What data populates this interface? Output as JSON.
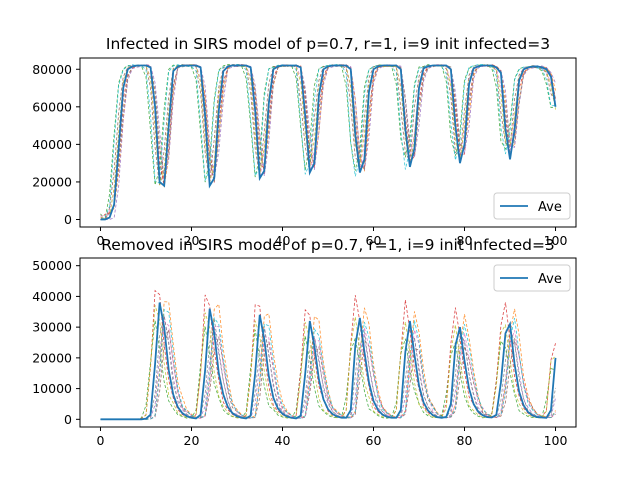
{
  "chart_data": [
    {
      "type": "line",
      "title": "Infected in SIRS model of p=0.7, r=1, i=9 init infected=3",
      "xlabel": "",
      "ylabel": "",
      "xlim": [
        -4.5,
        104.5
      ],
      "ylim": [
        -4000,
        86000
      ],
      "xticks": [
        0,
        20,
        40,
        60,
        80,
        100
      ],
      "yticks": [
        0,
        20000,
        40000,
        60000,
        80000
      ],
      "grid": false,
      "legend": {
        "position": "lower-right",
        "entries": [
          "Ave"
        ]
      },
      "average_series": {
        "name": "Ave",
        "color": "#1f77b4",
        "x": [
          0,
          1,
          2,
          3,
          4,
          5,
          6,
          7,
          8,
          9,
          10,
          11,
          12,
          13,
          14,
          15,
          16,
          17,
          18,
          19,
          20,
          21,
          22,
          23,
          24,
          25,
          26,
          27,
          28,
          29,
          30,
          31,
          32,
          33,
          34,
          35,
          36,
          37,
          38,
          39,
          40,
          41,
          42,
          43,
          44,
          45,
          46,
          47,
          48,
          49,
          50,
          51,
          52,
          53,
          54,
          55,
          56,
          57,
          58,
          59,
          60,
          61,
          62,
          63,
          64,
          65,
          66,
          67,
          68,
          69,
          70,
          71,
          72,
          73,
          74,
          75,
          76,
          77,
          78,
          79,
          80,
          81,
          82,
          83,
          84,
          85,
          86,
          87,
          88,
          89,
          90,
          91,
          92,
          93,
          94,
          95,
          96,
          97,
          98,
          99,
          100
        ],
        "y": [
          0,
          0,
          1000,
          8000,
          38000,
          70000,
          80000,
          81500,
          82000,
          82000,
          82000,
          81000,
          60000,
          20000,
          18000,
          50000,
          79000,
          81500,
          82000,
          82000,
          82000,
          82000,
          81000,
          55000,
          18000,
          22000,
          58000,
          79000,
          81500,
          82000,
          82000,
          82000,
          82000,
          81000,
          58000,
          22000,
          26000,
          62000,
          80000,
          81500,
          82000,
          82000,
          82000,
          82000,
          81000,
          55000,
          25000,
          30000,
          66000,
          80000,
          81500,
          82000,
          82000,
          82000,
          82000,
          80000,
          45000,
          25000,
          32000,
          68000,
          80000,
          81500,
          82000,
          82000,
          82000,
          82000,
          80000,
          48000,
          28000,
          38000,
          70000,
          80500,
          81500,
          82000,
          82000,
          82000,
          82000,
          80000,
          50000,
          30000,
          40000,
          72000,
          80500,
          81500,
          82000,
          82000,
          82000,
          81000,
          78000,
          48000,
          32000,
          48000,
          74000,
          80000,
          81000,
          81500,
          81500,
          81000,
          80000,
          76000,
          60000
        ]
      },
      "run_colors": [
        "#ff7f0e",
        "#2ca02c",
        "#d62728",
        "#9467bd",
        "#8c564b",
        "#e377c2",
        "#7f7f7f",
        "#bcbd22",
        "#17becf"
      ]
    },
    {
      "type": "line",
      "title": "Removed in SIRS model of p=0.7, r=1, i=9 init infected=3",
      "xlabel": "",
      "ylabel": "",
      "xlim": [
        -4.5,
        104.5
      ],
      "ylim": [
        -2500,
        52500
      ],
      "xticks": [
        0,
        20,
        40,
        60,
        80,
        100
      ],
      "yticks": [
        0,
        10000,
        20000,
        30000,
        40000,
        50000
      ],
      "grid": false,
      "legend": {
        "position": "top-right",
        "entries": [
          "Ave"
        ]
      },
      "average_series": {
        "name": "Ave",
        "color": "#1f77b4",
        "x": [
          0,
          1,
          2,
          3,
          4,
          5,
          6,
          7,
          8,
          9,
          10,
          11,
          12,
          13,
          14,
          15,
          16,
          17,
          18,
          19,
          20,
          21,
          22,
          23,
          24,
          25,
          26,
          27,
          28,
          29,
          30,
          31,
          32,
          33,
          34,
          35,
          36,
          37,
          38,
          39,
          40,
          41,
          42,
          43,
          44,
          45,
          46,
          47,
          48,
          49,
          50,
          51,
          52,
          53,
          54,
          55,
          56,
          57,
          58,
          59,
          60,
          61,
          62,
          63,
          64,
          65,
          66,
          67,
          68,
          69,
          70,
          71,
          72,
          73,
          74,
          75,
          76,
          77,
          78,
          79,
          80,
          81,
          82,
          83,
          84,
          85,
          86,
          87,
          88,
          89,
          90,
          91,
          92,
          93,
          94,
          95,
          96,
          97,
          98,
          99,
          100
        ],
        "y": [
          0,
          0,
          0,
          0,
          0,
          0,
          0,
          0,
          0,
          0,
          200,
          1500,
          18000,
          38000,
          30000,
          16000,
          8000,
          4000,
          2000,
          1000,
          500,
          300,
          1500,
          16000,
          36000,
          28000,
          15000,
          8000,
          4000,
          2000,
          1000,
          500,
          300,
          1200,
          15000,
          34000,
          26000,
          14000,
          7000,
          3500,
          1800,
          900,
          500,
          300,
          1200,
          15000,
          32000,
          24000,
          13000,
          6500,
          3300,
          1700,
          900,
          500,
          500,
          3000,
          24000,
          33000,
          22000,
          12000,
          6000,
          3000,
          1500,
          800,
          500,
          500,
          3000,
          22000,
          32000,
          21000,
          11000,
          5500,
          2800,
          1400,
          700,
          500,
          800,
          5000,
          24000,
          30000,
          19000,
          10000,
          5000,
          2500,
          1300,
          700,
          600,
          1500,
          12000,
          28000,
          31000,
          18000,
          9000,
          4500,
          2300,
          1200,
          700,
          600,
          500,
          3000,
          20000
        ]
      },
      "run_colors": [
        "#ff7f0e",
        "#2ca02c",
        "#d62728",
        "#9467bd",
        "#8c564b",
        "#e377c2",
        "#7f7f7f",
        "#bcbd22",
        "#17becf"
      ]
    }
  ]
}
